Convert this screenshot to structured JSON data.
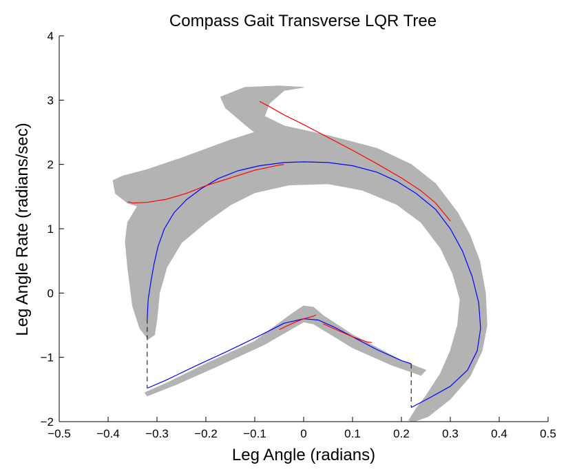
{
  "chart_data": {
    "type": "line",
    "title": "Compass Gait Transverse LQR Tree",
    "xlabel": "Leg Angle (radians)",
    "ylabel": "Leg Angle Rate (radians/sec)",
    "xlim": [
      -0.5,
      0.5
    ],
    "ylim": [
      -2,
      4
    ],
    "xticks": [
      -0.5,
      -0.4,
      -0.3,
      -0.2,
      -0.1,
      0,
      0.1,
      0.2,
      0.3,
      0.4,
      0.5
    ],
    "xtick_labels": [
      "−0.5",
      "−0.4",
      "−0.3",
      "−0.2",
      "−0.1",
      "0",
      "0.1",
      "0.2",
      "0.3",
      "0.4",
      "0.5"
    ],
    "yticks": [
      -2,
      -1,
      0,
      1,
      2,
      3,
      4
    ],
    "ytick_labels": [
      "−2",
      "−1",
      "0",
      "1",
      "2",
      "3",
      "4"
    ],
    "grid": false,
    "colors": {
      "region": "#b3b3b3",
      "nominal": "#0000ff",
      "branch": "#ff0000",
      "reset": "#000000"
    },
    "regions": [
      {
        "points": [
          [
            -0.34,
            1.35
          ],
          [
            -0.36,
            1.1
          ],
          [
            -0.365,
            0.8
          ],
          [
            -0.36,
            0.4
          ],
          [
            -0.355,
            0.1
          ],
          [
            -0.35,
            -0.2
          ],
          [
            -0.335,
            -0.55
          ],
          [
            -0.318,
            -0.72
          ],
          [
            -0.305,
            -0.65
          ],
          [
            -0.3,
            -0.4
          ],
          [
            -0.295,
            0.0
          ],
          [
            -0.28,
            0.4
          ],
          [
            -0.25,
            0.78
          ],
          [
            -0.2,
            1.1
          ],
          [
            -0.15,
            1.37
          ],
          [
            -0.1,
            1.56
          ],
          [
            -0.03,
            1.68
          ],
          [
            0.05,
            1.7
          ],
          [
            0.12,
            1.6
          ],
          [
            0.19,
            1.38
          ],
          [
            0.24,
            1.1
          ],
          [
            0.28,
            0.7
          ],
          [
            0.305,
            0.3
          ],
          [
            0.32,
            -0.1
          ],
          [
            0.315,
            -0.5
          ],
          [
            0.3,
            -0.9
          ],
          [
            0.28,
            -1.25
          ],
          [
            0.25,
            -1.6
          ],
          [
            0.23,
            -1.8
          ],
          [
            0.215,
            -1.98
          ],
          [
            0.225,
            -2.0
          ],
          [
            0.255,
            -1.92
          ],
          [
            0.3,
            -1.65
          ],
          [
            0.34,
            -1.3
          ],
          [
            0.365,
            -0.9
          ],
          [
            0.375,
            -0.5
          ],
          [
            0.372,
            0.0
          ],
          [
            0.36,
            0.5
          ],
          [
            0.34,
            0.9
          ],
          [
            0.315,
            1.25
          ],
          [
            0.27,
            1.7
          ],
          [
            0.22,
            2.0
          ],
          [
            0.15,
            2.25
          ],
          [
            0.05,
            2.45
          ],
          [
            -0.04,
            2.6
          ],
          [
            -0.08,
            2.75
          ],
          [
            -0.07,
            2.95
          ],
          [
            -0.04,
            3.15
          ],
          [
            0.0,
            3.2
          ],
          [
            -0.05,
            3.22
          ],
          [
            -0.12,
            3.2
          ],
          [
            -0.17,
            3.05
          ],
          [
            -0.16,
            2.88
          ],
          [
            -0.12,
            2.62
          ],
          [
            -0.1,
            2.5
          ],
          [
            -0.15,
            2.38
          ],
          [
            -0.25,
            2.1
          ],
          [
            -0.32,
            1.92
          ],
          [
            -0.37,
            1.82
          ],
          [
            -0.39,
            1.75
          ],
          [
            -0.385,
            1.55
          ],
          [
            -0.36,
            1.4
          ]
        ]
      },
      {
        "points": [
          [
            -0.325,
            -1.55
          ],
          [
            -0.28,
            -1.4
          ],
          [
            -0.2,
            -1.1
          ],
          [
            -0.1,
            -0.75
          ],
          [
            -0.02,
            -0.3
          ],
          [
            0.0,
            -0.2
          ],
          [
            0.02,
            -0.22
          ],
          [
            0.04,
            -0.35
          ],
          [
            0.1,
            -0.65
          ],
          [
            0.2,
            -1.05
          ],
          [
            0.25,
            -1.2
          ],
          [
            0.24,
            -1.28
          ],
          [
            0.18,
            -1.12
          ],
          [
            0.1,
            -0.85
          ],
          [
            0.02,
            -0.48
          ],
          [
            0.0,
            -0.45
          ],
          [
            -0.08,
            -0.8
          ],
          [
            -0.18,
            -1.15
          ],
          [
            -0.26,
            -1.42
          ],
          [
            -0.32,
            -1.6
          ]
        ]
      }
    ],
    "series": [
      {
        "color": "#0000ff",
        "x": [
          -0.32,
          -0.318,
          -0.312,
          -0.306,
          -0.298,
          -0.285,
          -0.265,
          -0.24,
          -0.21,
          -0.175,
          -0.135,
          -0.09,
          -0.04,
          0.0,
          0.05,
          0.1,
          0.15,
          0.19,
          0.23,
          0.27,
          0.3,
          0.325,
          0.345,
          0.358,
          0.362,
          0.355,
          0.335,
          0.3,
          0.26,
          0.22
        ],
        "y": [
          -0.4,
          -0.1,
          0.2,
          0.45,
          0.72,
          1.0,
          1.25,
          1.45,
          1.62,
          1.78,
          1.9,
          1.98,
          2.03,
          2.04,
          2.03,
          1.98,
          1.88,
          1.74,
          1.55,
          1.3,
          1.0,
          0.65,
          0.25,
          -0.15,
          -0.55,
          -0.9,
          -1.2,
          -1.45,
          -1.62,
          -1.78
        ]
      },
      {
        "color": "#0000ff",
        "x": [
          -0.32,
          -0.28,
          -0.22,
          -0.16,
          -0.1,
          -0.04,
          0.0,
          0.03,
          0.06,
          0.1,
          0.15,
          0.2,
          0.22
        ],
        "y": [
          -1.48,
          -1.35,
          -1.13,
          -0.92,
          -0.7,
          -0.47,
          -0.4,
          -0.42,
          -0.52,
          -0.68,
          -0.88,
          -1.05,
          -1.1
        ]
      },
      {
        "color": "#ff0000",
        "x": [
          -0.36,
          -0.35,
          -0.32,
          -0.28,
          -0.24,
          -0.2,
          -0.15,
          -0.1,
          -0.05,
          -0.04
        ],
        "y": [
          1.42,
          1.4,
          1.41,
          1.46,
          1.55,
          1.67,
          1.79,
          1.91,
          1.99,
          2.0
        ]
      },
      {
        "color": "#ff0000",
        "x": [
          -0.09,
          -0.07,
          -0.04,
          0.0,
          0.05,
          0.1,
          0.15,
          0.2,
          0.24,
          0.27,
          0.3
        ],
        "y": [
          2.98,
          2.9,
          2.77,
          2.62,
          2.42,
          2.22,
          2.01,
          1.79,
          1.59,
          1.4,
          1.12
        ]
      },
      {
        "color": "#ff0000",
        "x": [
          -0.05,
          -0.02,
          0.0,
          0.02,
          0.025
        ],
        "y": [
          -0.57,
          -0.46,
          -0.4,
          -0.36,
          -0.34
        ]
      },
      {
        "color": "#ff0000",
        "x": [
          0.04,
          0.07,
          0.1,
          0.13,
          0.14
        ],
        "y": [
          -0.48,
          -0.58,
          -0.68,
          -0.76,
          -0.77
        ]
      }
    ],
    "reset_lines": [
      {
        "x": -0.32,
        "y1": -0.4,
        "y2": -1.48
      },
      {
        "x": 0.22,
        "y1": -1.1,
        "y2": -1.78
      }
    ]
  }
}
